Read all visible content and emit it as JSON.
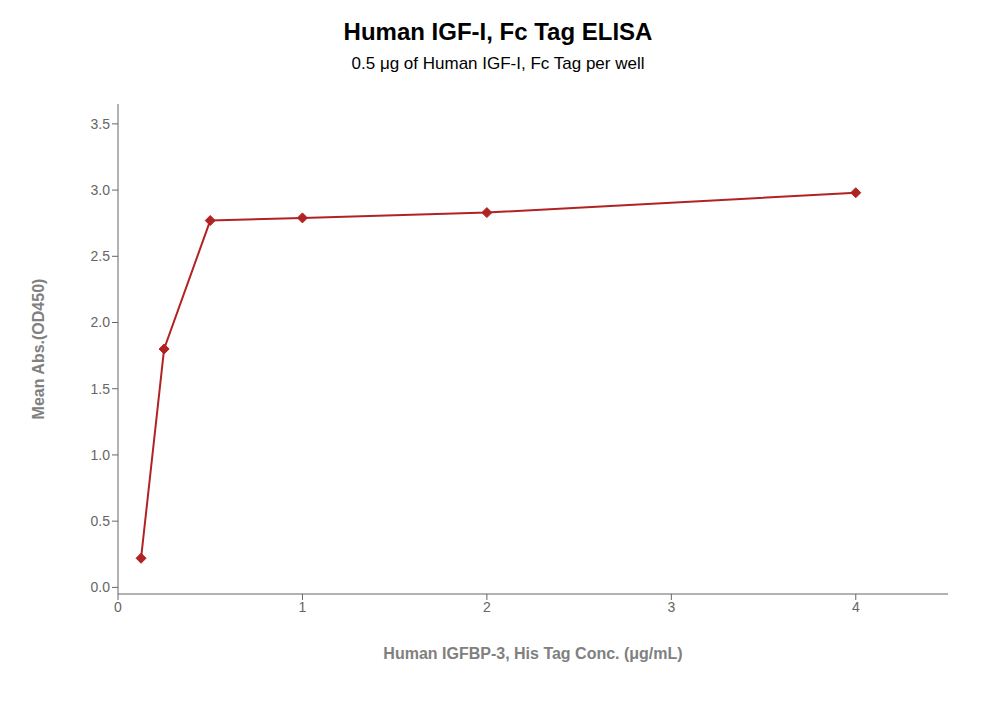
{
  "chart_data": {
    "type": "line",
    "title": "Human IGF-I, Fc Tag ELISA",
    "subtitle": "0.5 μg of Human IGF-I, Fc Tag per well",
    "xlabel": "Human IGFBP-3, His Tag Conc. (μg/mL)",
    "ylabel": "Mean Abs.(OD450)",
    "x": [
      0.125,
      0.25,
      0.5,
      1.0,
      2.0,
      4.0
    ],
    "values": [
      0.22,
      1.8,
      2.77,
      2.79,
      2.83,
      2.98
    ],
    "color": "#B22222",
    "marker": "diamond",
    "xlim": [
      0,
      4.5
    ],
    "ylim": [
      -0.05,
      3.65
    ],
    "xticks": [
      0,
      1,
      2,
      3,
      4
    ],
    "yticks": [
      {
        "value": 0,
        "label": "0.0"
      },
      0.5,
      {
        "value": 1,
        "label": "1.0"
      },
      1.5,
      {
        "value": 2,
        "label": "2.0"
      },
      2.5,
      {
        "value": 3,
        "label": "3.0"
      },
      3.5
    ],
    "grid": false
  }
}
